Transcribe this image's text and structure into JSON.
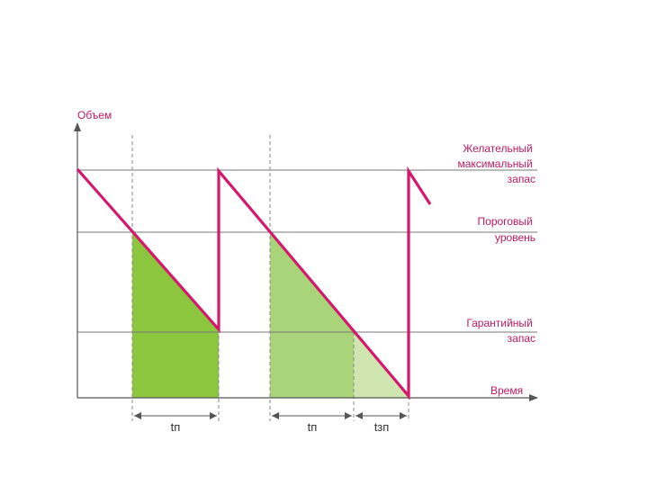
{
  "axes": {
    "y_label": "Объем",
    "x_label": "Время"
  },
  "levels": {
    "max_stock": [
      "Желательный",
      "максимальный",
      "запас"
    ],
    "threshold": [
      "Пороговый",
      "уровень"
    ],
    "safety_stock": [
      "Гарантийный",
      "запас"
    ]
  },
  "intervals": {
    "lead_time_1": "tп",
    "lead_time_2": "tп",
    "delay_time": "tзп"
  },
  "colors": {
    "sawtooth": "#d4186e",
    "fill_dark": "#8cc63f",
    "fill_mid": "#a9d47a",
    "fill_light": "#cfe6b0",
    "level_line": "#777777",
    "axis": "#555555",
    "label": "#c0185f"
  }
}
